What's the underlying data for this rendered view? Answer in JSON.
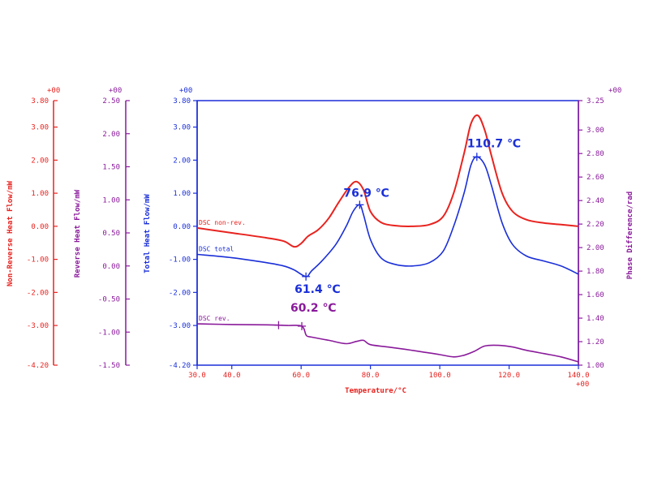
{
  "chart_data": {
    "type": "line",
    "xlabel": "Temperature/°C",
    "x_ticks": [
      "30.0",
      "40.0",
      "60.0",
      "80.0",
      "100.0",
      "120.0",
      "140.0"
    ],
    "x_exponent": "+00",
    "xlim": [
      30,
      140
    ],
    "axes": {
      "non_reverse": {
        "label": "Non-Reverse Heat Flow/mW",
        "exponent": "+00",
        "color": "#e8231f",
        "ticks": [
          "3.80",
          "3.00",
          "2.00",
          "1.00",
          "0.00",
          "-1.00",
          "-2.00",
          "-3.00",
          "-4.20"
        ],
        "ylim": [
          -4.2,
          3.8
        ]
      },
      "reverse": {
        "label": "Reverse Heat Flow/mW",
        "exponent": "+00",
        "color": "#8a1a9b",
        "ticks": [
          "2.50",
          "2.00",
          "1.50",
          "1.00",
          "0.50",
          "0.00",
          "-0.50",
          "-1.00",
          "-1.50"
        ],
        "ylim": [
          -1.5,
          2.5
        ]
      },
      "total": {
        "label": "Total Heat Flow/mW",
        "exponent": "+00",
        "color": "#1a2fd8",
        "ticks": [
          "3.80",
          "3.00",
          "2.00",
          "1.00",
          "0.00",
          "-1.00",
          "-2.00",
          "-3.00",
          "-4.20"
        ],
        "ylim": [
          -4.2,
          3.8
        ]
      },
      "phase": {
        "label": "Phase Difference/rad",
        "exponent": "+00",
        "color": "#8a1a9b",
        "ticks": [
          "3.25",
          "3.00",
          "2.80",
          "2.60",
          "2.40",
          "2.20",
          "2.00",
          "1.80",
          "1.60",
          "1.40",
          "1.20",
          "1.00"
        ],
        "ylim": [
          1.0,
          3.25
        ]
      }
    },
    "series": [
      {
        "name": "DSC non-rev.",
        "color": "#e8231f",
        "x": [
          30,
          40,
          50,
          55,
          58,
          60,
          62,
          65,
          68,
          71,
          74,
          76,
          78,
          80,
          83,
          87,
          92,
          97,
          101,
          104,
          107,
          109,
          111,
          113,
          115,
          118,
          121,
          125,
          130,
          135,
          140
        ],
        "y": [
          -0.05,
          -0.2,
          -0.35,
          -0.45,
          -0.62,
          -0.52,
          -0.3,
          -0.1,
          0.25,
          0.75,
          1.2,
          1.35,
          1.1,
          0.45,
          0.12,
          0.02,
          0.0,
          0.05,
          0.3,
          1.0,
          2.2,
          3.1,
          3.35,
          2.9,
          2.1,
          1.0,
          0.45,
          0.2,
          0.1,
          0.05,
          0.0
        ]
      },
      {
        "name": "DSC total",
        "color": "#1a2fd8",
        "x": [
          30,
          40,
          50,
          55,
          58,
          61.4,
          63,
          66,
          70,
          73,
          75,
          76.9,
          78,
          80,
          83,
          87,
          92,
          97,
          101,
          104,
          107,
          109,
          110.7,
          113,
          115,
          118,
          121,
          125,
          130,
          135,
          140
        ],
        "y": [
          -0.85,
          -0.95,
          -1.1,
          -1.2,
          -1.32,
          -1.52,
          -1.35,
          -1.05,
          -0.55,
          0.0,
          0.45,
          0.65,
          0.35,
          -0.4,
          -0.95,
          -1.15,
          -1.2,
          -1.1,
          -0.75,
          0.0,
          1.0,
          1.85,
          2.1,
          1.85,
          1.2,
          0.1,
          -0.55,
          -0.9,
          -1.05,
          -1.2,
          -1.45
        ]
      },
      {
        "name": "DSC rev.",
        "color": "#8a1a9b",
        "x": [
          30,
          40,
          50,
          56,
          60.2,
          61.5,
          63,
          68,
          73,
          76,
          78,
          80,
          85,
          90,
          95,
          100,
          104,
          107,
          110,
          113,
          117,
          121,
          125,
          130,
          135,
          140
        ],
        "y": [
          -2.95,
          -2.97,
          -2.98,
          -3.0,
          -3.02,
          -3.3,
          -3.35,
          -3.45,
          -3.55,
          -3.48,
          -3.45,
          -3.58,
          -3.65,
          -3.72,
          -3.8,
          -3.88,
          -3.95,
          -3.9,
          -3.78,
          -3.62,
          -3.6,
          -3.65,
          -3.75,
          -3.85,
          -3.95,
          -4.1
        ]
      }
    ],
    "annotations": [
      {
        "text": "76.9 ℃",
        "series": "DSC total",
        "x": 76.9,
        "y": 0.65,
        "color": "#1a2fd8"
      },
      {
        "text": "110.7 ℃",
        "series": "DSC total",
        "x": 110.7,
        "y": 2.1,
        "color": "#1a2fd8"
      },
      {
        "text": "61.4 ℃",
        "series": "DSC total",
        "x": 61.4,
        "y": -1.52,
        "color": "#1a2fd8"
      },
      {
        "text": "60.2 ℃",
        "series": "DSC rev.",
        "x": 60.2,
        "y": -3.02,
        "color": "#8a1a9b"
      }
    ],
    "extra_marker": {
      "series": "DSC rev.",
      "x": 53.5,
      "y": -2.99
    },
    "grid": false,
    "legend": "inline labels at left of plot"
  }
}
